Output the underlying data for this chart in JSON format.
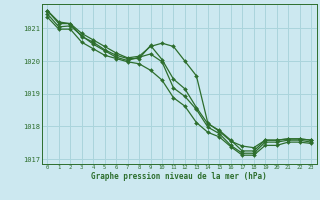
{
  "title": "Graphe pression niveau de la mer (hPa)",
  "background_color": "#cce8f0",
  "grid_color": "#aad4dc",
  "line_color": "#2d6e2d",
  "xlim": [
    -0.5,
    23.5
  ],
  "ylim": [
    1016.85,
    1021.75
  ],
  "yticks": [
    1017,
    1018,
    1019,
    1020,
    1021
  ],
  "xticks": [
    0,
    1,
    2,
    3,
    4,
    5,
    6,
    7,
    8,
    9,
    10,
    11,
    12,
    13,
    14,
    15,
    16,
    17,
    18,
    19,
    20,
    21,
    22,
    23
  ],
  "series": [
    [
      1021.55,
      1021.2,
      1021.15,
      1020.85,
      1020.65,
      1020.45,
      1020.25,
      1020.1,
      1020.15,
      1020.45,
      1020.55,
      1020.45,
      1020.0,
      1019.55,
      1018.1,
      1017.85,
      1017.55,
      1017.4,
      1017.35,
      1017.58,
      1017.58,
      1017.62,
      1017.62,
      1017.58
    ],
    [
      1021.55,
      1021.15,
      1021.15,
      1020.75,
      1020.58,
      1020.35,
      1020.18,
      1020.08,
      1020.08,
      1020.48,
      1020.05,
      1019.45,
      1019.15,
      1018.58,
      1018.08,
      1017.88,
      1017.58,
      1017.25,
      1017.25,
      1017.58,
      1017.58,
      1017.62,
      1017.62,
      1017.58
    ],
    [
      1021.45,
      1021.05,
      1021.08,
      1020.78,
      1020.52,
      1020.32,
      1020.12,
      1020.02,
      1020.12,
      1020.22,
      1019.98,
      1019.18,
      1018.92,
      1018.52,
      1017.98,
      1017.78,
      1017.42,
      1017.18,
      1017.18,
      1017.52,
      1017.52,
      1017.58,
      1017.58,
      1017.52
    ],
    [
      1021.35,
      1020.98,
      1020.98,
      1020.58,
      1020.38,
      1020.18,
      1020.08,
      1019.98,
      1019.92,
      1019.72,
      1019.42,
      1018.88,
      1018.62,
      1018.12,
      1017.82,
      1017.68,
      1017.38,
      1017.12,
      1017.12,
      1017.42,
      1017.42,
      1017.52,
      1017.52,
      1017.48
    ]
  ]
}
